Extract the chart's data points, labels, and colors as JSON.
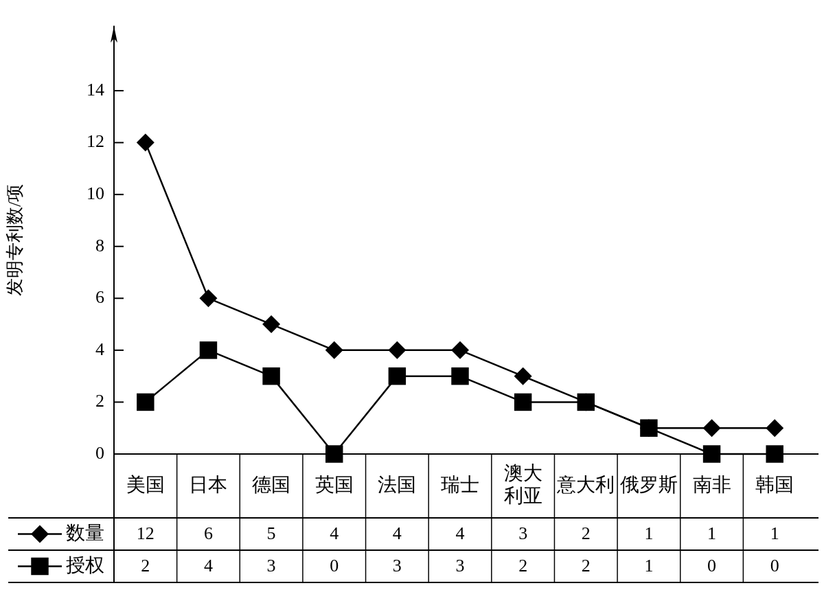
{
  "chart_data": {
    "type": "line",
    "ylabel": "发明专利数/项",
    "categories": [
      "美国",
      "日本",
      "德国",
      "英国",
      "法国",
      "瑞士",
      "澳大利亚",
      "意大利",
      "俄罗斯",
      "南非",
      "韩国"
    ],
    "series": [
      {
        "name": "数量",
        "color": "#000000",
        "marker": "diamond",
        "values": [
          12,
          6,
          5,
          4,
          4,
          4,
          3,
          2,
          1,
          1,
          1
        ]
      },
      {
        "name": "授权",
        "color": "#000000",
        "marker": "square",
        "values": [
          2,
          4,
          3,
          0,
          3,
          3,
          2,
          2,
          1,
          0,
          0
        ]
      }
    ],
    "ylim": [
      0,
      16.5
    ],
    "yticks": [
      0,
      2,
      4,
      6,
      8,
      10,
      12,
      14
    ],
    "grid": false,
    "legend": "bottom left",
    "data_labels": true,
    "line_style": "solid"
  }
}
